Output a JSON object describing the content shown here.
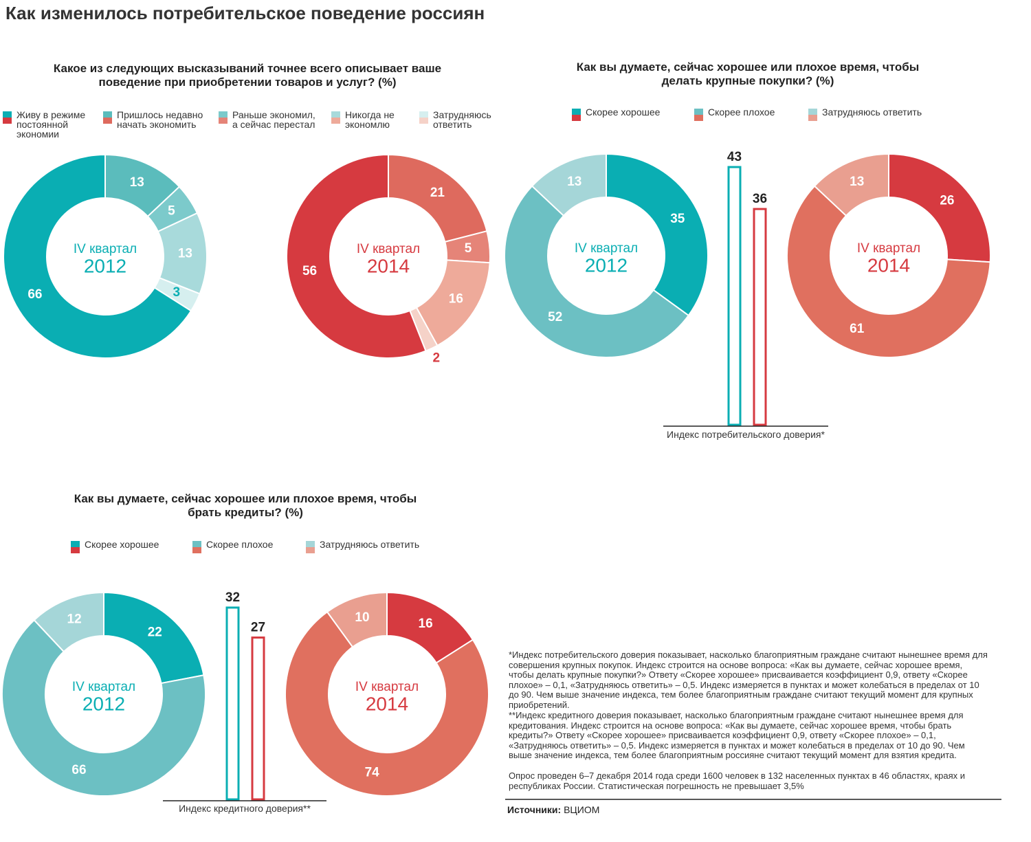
{
  "title": "Как изменилось потребительское поведение россиян",
  "chart_data": [
    {
      "type": "donut",
      "title": "Какое из следующих высказываний точнее всего описывает ваше поведение при приобретении товаров и услуг? (%)",
      "categories": [
        "Живу в режиме постоянной экономии",
        "Пришлось недавно начать экономить",
        "Раньше экономил, а сейчас перестал",
        "Никогда не экономлю",
        "Затрудняюсь ответить"
      ],
      "series": [
        {
          "name": "2012",
          "period": "IV квартал",
          "colors": [
            "#0aaeb3",
            "#5bbcbc",
            "#7ccacb",
            "#a8dadb",
            "#d6efef"
          ],
          "values": [
            66,
            13,
            5,
            13,
            3
          ]
        },
        {
          "name": "2014",
          "period": "IV квартал",
          "colors": [
            "#d63a40",
            "#de6a5e",
            "#e58478",
            "#eeaa9a",
            "#f5d2c8"
          ],
          "values": [
            56,
            21,
            5,
            16,
            2
          ]
        }
      ]
    },
    {
      "type": "donut",
      "title": "Как вы думаете, сейчас хорошее или плохое время, чтобы делать крупные покупки? (%)",
      "categories": [
        "Скорее хорошее",
        "Скорее плохое",
        "Затрудняюсь ответить"
      ],
      "series": [
        {
          "name": "2012",
          "period": "IV квартал",
          "colors": [
            "#0aaeb3",
            "#6cc0c3",
            "#a5d6d8"
          ],
          "values": [
            35,
            52,
            13
          ]
        },
        {
          "name": "2014",
          "period": "IV квартал",
          "colors": [
            "#d63a40",
            "#e0705f",
            "#e99f90"
          ],
          "values": [
            26,
            61,
            13
          ]
        }
      ],
      "index": {
        "label": "Индекс потребительского доверия*",
        "values": [
          43,
          36
        ]
      }
    },
    {
      "type": "donut",
      "title": "Как вы думаете, сейчас хорошее или плохое время, чтобы брать кредиты? (%)",
      "categories": [
        "Скорее хорошее",
        "Скорее плохое",
        "Затрудняюсь ответить"
      ],
      "series": [
        {
          "name": "2012",
          "period": "IV квартал",
          "colors": [
            "#0aaeb3",
            "#6cc0c3",
            "#a5d6d8"
          ],
          "values": [
            22,
            66,
            12
          ]
        },
        {
          "name": "2014",
          "period": "IV квартал",
          "colors": [
            "#d63a40",
            "#e0705f",
            "#e99f90"
          ],
          "values": [
            16,
            74,
            10
          ]
        }
      ],
      "index": {
        "label": "Индекс кредитного доверия**",
        "values": [
          32,
          27
        ]
      }
    }
  ],
  "notes": [
    "*Индекс потребительского доверия показывает, насколько благоприятным граждане считают нынешнее время для совершения крупных покупок. Индекс строится на основе вопроса: «Как вы думаете, сейчас хорошее время, чтобы делать крупные покупки?» Ответу «Скорее хорошее» присваивается коэффициент 0,9, ответу «Скорее плохое» – 0,1, «Затрудняюсь ответить» – 0,5. Индекс измеряется в пунктах и может колебаться в пределах от 10 до 90. Чем выше значение индекса, тем более благоприятным граждане считают текущий момент для крупных приобретений.",
    "**Индекс кредитного доверия показывает, насколько благоприятным граждане считают нынешнее время для кредитования. Индекс строится на основе вопроса: «Как вы думаете, сейчас хорошее время, чтобы брать кредиты?» Ответу «Скорее хорошее» присваивается коэффициент 0,9, ответу «Скорее плохое» – 0,1, «Затрудняюсь ответить» – 0,5. Индекс измеряется в пунктах и может колебаться в пределах от 10 до 90. Чем выше значение индекса, тем более благоприятным россияне считают текущий момент для взятия кредита.",
    "Опрос проведен 6–7 декабря 2014 года среди 1600 человек в 132 населенных пунктах в 46 областях, краях и республиках России. Статистическая погрешность не превышает 3,5%"
  ],
  "source": {
    "label": "Источники:",
    "value": "ВЦИОМ"
  }
}
